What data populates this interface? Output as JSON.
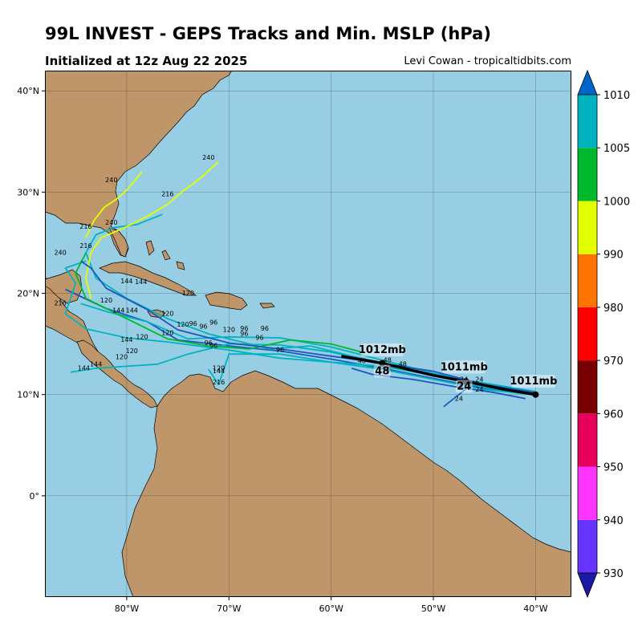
{
  "header": {
    "title": "99L INVEST - GEPS Tracks and Min. MSLP (hPa)",
    "init": "Initialized at 12z Aug 22 2025",
    "credit": "Levi Cowan - tropicaltidbits.com"
  },
  "map": {
    "lon_range": [
      -88,
      -36.5
    ],
    "lat_range": [
      -10,
      42
    ],
    "x_ticks": [
      {
        "lon": -80,
        "label": "80°W"
      },
      {
        "lon": -70,
        "label": "70°W"
      },
      {
        "lon": -60,
        "label": "60°W"
      },
      {
        "lon": -50,
        "label": "50°W"
      },
      {
        "lon": -40,
        "label": "40°W"
      }
    ],
    "y_ticks": [
      {
        "lat": 40,
        "label": "40°N"
      },
      {
        "lat": 30,
        "label": "30°N"
      },
      {
        "lat": 20,
        "label": "20°N"
      },
      {
        "lat": 10,
        "label": "10°N"
      },
      {
        "lat": 0,
        "label": "0°"
      }
    ],
    "ocean_color": "#97cee4",
    "land_color": "#bf9669"
  },
  "colorbar": {
    "levels": [
      930,
      940,
      950,
      960,
      970,
      980,
      990,
      1000,
      1005,
      1010
    ],
    "colors": [
      "#6633ff",
      "#ff33ff",
      "#e6005c",
      "#780000",
      "#ff0000",
      "#ff7400",
      "#e4ff00",
      "#00b82e",
      "#00b4bf"
    ],
    "under_color": "#1a1aa6",
    "over_color": "#0066cc"
  },
  "tracks": [
    {
      "color": "#1e56bf",
      "points": [
        [
          -40,
          10
        ],
        [
          -45,
          10.6
        ],
        [
          -50,
          11.6
        ],
        [
          -55,
          12.6
        ],
        [
          -60,
          13.5
        ],
        [
          -65,
          14.3
        ],
        [
          -70,
          14.8
        ],
        [
          -75,
          15.4
        ],
        [
          -78,
          17.2
        ],
        [
          -82,
          18.5
        ],
        [
          -86,
          20.4
        ]
      ]
    },
    {
      "color": "#00b4bf",
      "points": [
        [
          -40,
          10
        ],
        [
          -45,
          10.7
        ],
        [
          -50,
          11.9
        ],
        [
          -55,
          13
        ],
        [
          -60,
          14.2
        ],
        [
          -65,
          14.9
        ],
        [
          -70,
          15
        ],
        [
          -74,
          14
        ],
        [
          -77,
          13
        ],
        [
          -80,
          12.8
        ],
        [
          -83,
          12.6
        ],
        [
          -85.5,
          12.2
        ]
      ]
    },
    {
      "color": "#00b4bf",
      "points": [
        [
          -40,
          10.1
        ],
        [
          -45,
          10.9
        ],
        [
          -50,
          12.1
        ],
        [
          -55,
          13.4
        ],
        [
          -60,
          14.7
        ],
        [
          -65,
          15.6
        ],
        [
          -70,
          15.7
        ],
        [
          -74,
          15.5
        ],
        [
          -78,
          17.2
        ],
        [
          -82,
          18.2
        ],
        [
          -84.5,
          19
        ]
      ]
    },
    {
      "color": "#00b4bf",
      "points": [
        [
          -40,
          10.2
        ],
        [
          -45,
          10.9
        ],
        [
          -50,
          11.9
        ],
        [
          -55,
          12.8
        ],
        [
          -60,
          13.2
        ],
        [
          -65,
          14
        ],
        [
          -70,
          14
        ],
        [
          -71,
          11
        ],
        [
          -72,
          12.5
        ]
      ]
    },
    {
      "color": "#00b4bf",
      "points": [
        [
          -40.2,
          10
        ],
        [
          -45,
          10.5
        ],
        [
          -50,
          11.5
        ],
        [
          -55,
          12.5
        ],
        [
          -60,
          13.2
        ],
        [
          -65,
          13.6
        ],
        [
          -70,
          14.4
        ],
        [
          -76,
          15.2
        ],
        [
          -80,
          15.6
        ],
        [
          -84,
          16.5
        ],
        [
          -86,
          18
        ],
        [
          -85,
          21
        ],
        [
          -86,
          22.5
        ],
        [
          -84,
          23.2
        ]
      ]
    },
    {
      "color": "#00b4bf",
      "points": [
        [
          -40,
          10.3
        ],
        [
          -46,
          11.3
        ],
        [
          -52,
          12.5
        ],
        [
          -58,
          13.8
        ],
        [
          -62,
          14.8
        ],
        [
          -66,
          14.5
        ],
        [
          -72,
          16
        ],
        [
          -76,
          17.5
        ],
        [
          -80,
          19.5
        ],
        [
          -83,
          21.5
        ],
        [
          -84,
          24
        ],
        [
          -83,
          25.8
        ],
        [
          -81.2,
          26.5
        ],
        [
          -79,
          26.8
        ],
        [
          -76.5,
          27.8
        ]
      ]
    },
    {
      "color": "#00b82e",
      "points": [
        [
          -57,
          14.2
        ],
        [
          -60,
          15
        ],
        [
          -64,
          15.4
        ],
        [
          -68,
          14.5
        ],
        [
          -72,
          14.8
        ],
        [
          -76,
          15.5
        ],
        [
          -80,
          17.5
        ],
        [
          -84,
          19.5
        ],
        [
          -85,
          22
        ],
        [
          -84,
          24
        ]
      ]
    },
    {
      "color": "#e4ff00",
      "points": [
        [
          -71,
          33
        ],
        [
          -73,
          31.2
        ],
        [
          -74.5,
          30.1
        ],
        [
          -76,
          28.8
        ],
        [
          -78,
          27.6
        ],
        [
          -80,
          26.6
        ],
        [
          -81.3,
          26
        ],
        [
          -82.5,
          25.5
        ],
        [
          -83.5,
          24
        ],
        [
          -84,
          21.5
        ],
        [
          -83.5,
          19.5
        ]
      ]
    },
    {
      "color": "#e4ff00",
      "points": [
        [
          -78.5,
          32
        ],
        [
          -80,
          30.2
        ],
        [
          -81,
          29.3
        ],
        [
          -82.2,
          28.5
        ],
        [
          -83.2,
          27.2
        ],
        [
          -84,
          25.5
        ]
      ]
    },
    {
      "color": "#1e56bf",
      "points": [
        [
          -40,
          10.2
        ],
        [
          -45,
          11
        ],
        [
          -50,
          12.3
        ],
        [
          -55,
          13.1
        ],
        [
          -60,
          13.8
        ],
        [
          -65,
          14.5
        ],
        [
          -70,
          15.1
        ],
        [
          -75,
          16.4
        ],
        [
          -78,
          18.4
        ],
        [
          -82,
          20.5
        ],
        [
          -83.5,
          22.5
        ],
        [
          -84.5,
          23.2
        ]
      ]
    },
    {
      "color": "#1e56bf",
      "points": [
        [
          -41,
          9.6
        ],
        [
          -44,
          10.2
        ],
        [
          -48,
          10.8
        ],
        [
          -52,
          11.5
        ],
        [
          -56,
          12
        ],
        [
          -58,
          12.6
        ]
      ]
    },
    {
      "color": "#1e56bf",
      "points": [
        [
          -46.5,
          10.8
        ],
        [
          -48,
          9.6
        ],
        [
          -49,
          8.8
        ]
      ]
    }
  ],
  "hour_labels": [
    {
      "lon": -81.5,
      "lat": 31,
      "text": "240"
    },
    {
      "lon": -72,
      "lat": 33.2,
      "text": "240"
    },
    {
      "lon": -86.5,
      "lat": 23.8,
      "text": "240"
    },
    {
      "lon": -76,
      "lat": 29.6,
      "text": "216"
    },
    {
      "lon": -84,
      "lat": 26.4,
      "text": "216"
    },
    {
      "lon": -84,
      "lat": 24.5,
      "text": "216"
    },
    {
      "lon": -86.5,
      "lat": 18.8,
      "text": "216"
    },
    {
      "lon": -71,
      "lat": 11,
      "text": "216"
    },
    {
      "lon": -81.5,
      "lat": 26.8,
      "text": "240"
    },
    {
      "lon": -80,
      "lat": 21,
      "text": "144"
    },
    {
      "lon": -78.6,
      "lat": 20.9,
      "text": "144"
    },
    {
      "lon": -80.8,
      "lat": 18.1,
      "text": "144"
    },
    {
      "lon": -79.5,
      "lat": 18.1,
      "text": "144"
    },
    {
      "lon": -80,
      "lat": 15.2,
      "text": "144"
    },
    {
      "lon": -83,
      "lat": 12.8,
      "text": "144"
    },
    {
      "lon": -84.2,
      "lat": 12.4,
      "text": "144"
    },
    {
      "lon": -82,
      "lat": 19.1,
      "text": "120"
    },
    {
      "lon": -74,
      "lat": 19.8,
      "text": "120"
    },
    {
      "lon": -76,
      "lat": 17.8,
      "text": "120"
    },
    {
      "lon": -78.5,
      "lat": 15.5,
      "text": "120"
    },
    {
      "lon": -79.5,
      "lat": 14.1,
      "text": "120"
    },
    {
      "lon": -80.5,
      "lat": 13.5,
      "text": "120"
    },
    {
      "lon": -76,
      "lat": 15.9,
      "text": "120"
    },
    {
      "lon": -74.5,
      "lat": 16.7,
      "text": "120"
    },
    {
      "lon": -70,
      "lat": 16.2,
      "text": "120"
    },
    {
      "lon": -71,
      "lat": 12.4,
      "text": "120"
    },
    {
      "lon": -71,
      "lat": 12.1,
      "text": "144"
    },
    {
      "lon": -73.5,
      "lat": 16.8,
      "text": "96"
    },
    {
      "lon": -72.5,
      "lat": 16.5,
      "text": "96"
    },
    {
      "lon": -71.5,
      "lat": 16.9,
      "text": "96"
    },
    {
      "lon": -68.5,
      "lat": 16.3,
      "text": "96"
    },
    {
      "lon": -67,
      "lat": 15.4,
      "text": "96"
    },
    {
      "lon": -68.5,
      "lat": 15.8,
      "text": "96"
    },
    {
      "lon": -72,
      "lat": 14.9,
      "text": "96"
    },
    {
      "lon": -71.5,
      "lat": 14.6,
      "text": "96"
    },
    {
      "lon": -66.5,
      "lat": 16.3,
      "text": "96"
    },
    {
      "lon": -65,
      "lat": 14.2,
      "text": "96"
    },
    {
      "lon": -57,
      "lat": 13.1,
      "text": "48"
    },
    {
      "lon": -54.5,
      "lat": 13.2,
      "text": "48"
    },
    {
      "lon": -53,
      "lat": 12.8,
      "text": "48"
    },
    {
      "lon": -54.5,
      "lat": 12.3,
      "text": "48"
    },
    {
      "lon": -47,
      "lat": 11.3,
      "text": "24"
    },
    {
      "lon": -45.5,
      "lat": 11.3,
      "text": "24"
    },
    {
      "lon": -47.5,
      "lat": 10.7,
      "text": "24"
    },
    {
      "lon": -45.5,
      "lat": 10.3,
      "text": "24"
    },
    {
      "lon": -47.5,
      "lat": 9.4,
      "text": "24"
    }
  ],
  "mean_track": {
    "points": [
      [
        -40,
        10
      ],
      [
        -43,
        10.5
      ],
      [
        -46.8,
        11.3
      ],
      [
        -50,
        11.9
      ],
      [
        -55,
        13.1
      ],
      [
        -59,
        13.8
      ]
    ],
    "markers": [
      [
        -40,
        10
      ],
      [
        -46.8,
        11.3
      ],
      [
        -55,
        13.1
      ]
    ],
    "hour_labels": [
      {
        "lon": -47,
        "lat": 10.5,
        "text": "24"
      },
      {
        "lon": -55,
        "lat": 12,
        "text": "48"
      }
    ],
    "mb_labels": [
      {
        "lon": -40.2,
        "lat": 11,
        "text": "1011mb"
      },
      {
        "lon": -47,
        "lat": 12.4,
        "text": "1011mb"
      },
      {
        "lon": -55,
        "lat": 14.1,
        "text": "1012mb"
      }
    ]
  }
}
